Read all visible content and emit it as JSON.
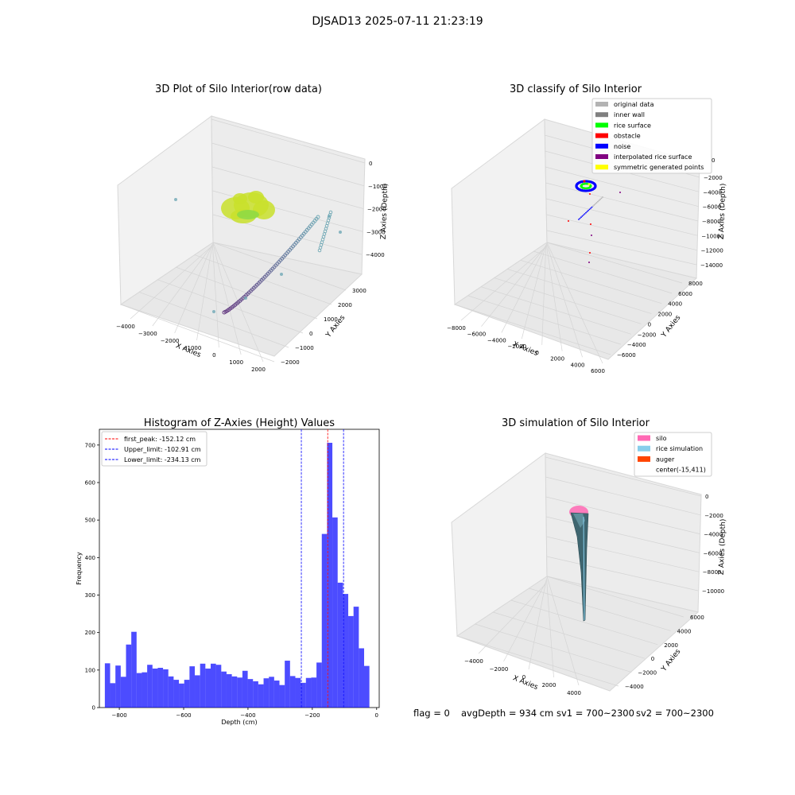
{
  "figure": {
    "suptitle": "DJSAD13 2025-07-11 21:23:19",
    "status_line": {
      "flag": "flag = 0",
      "avg_depth": "avgDepth = 934 cm",
      "sv1": "sv1 = 700~2300",
      "sv2": "sv2 = 700~2300"
    }
  },
  "chart_data": [
    {
      "id": "raw3d",
      "type": "scatter",
      "projection": "3d",
      "title": "3D Plot of Silo Interior(row data)",
      "xlabel": "X Axies",
      "ylabel": "Y Axies",
      "zlabel": "Z Axies (Depth)",
      "x_ticks": [
        "−4000",
        "−3000",
        "−2000",
        "−1000",
        "0",
        "1000",
        "2000"
      ],
      "y_ticks": [
        "−2000",
        "−1000",
        "0",
        "1000",
        "2000",
        "3000"
      ],
      "z_ticks": [
        "0",
        "−1000",
        "−2000",
        "−3000",
        "−4000"
      ],
      "colors": {
        "surface": "#c9e02c",
        "arc": "#5b2d7a",
        "wall": "#6fa8b5"
      },
      "legend": null
    },
    {
      "id": "classify3d",
      "type": "scatter",
      "projection": "3d",
      "title": "3D classify of Silo Interior",
      "xlabel": "X Axies",
      "ylabel": "Y Axies",
      "zlabel": "Z Axies (Depth)",
      "x_ticks": [
        "−8000",
        "−6000",
        "−4000",
        "−2000",
        "0",
        "2000",
        "4000",
        "6000"
      ],
      "y_ticks": [
        "−6000",
        "−4000",
        "−2000",
        "0",
        "2000",
        "4000",
        "6000",
        "8000"
      ],
      "z_ticks": [
        "−2000",
        "−4000",
        "−6000",
        "−8000",
        "−10000",
        "−12000",
        "−14000"
      ],
      "z_top_tick": "0",
      "legend": {
        "placement": "top-right",
        "entries": [
          {
            "label": "original data",
            "color": "#b3b3b3"
          },
          {
            "label": "inner wall",
            "color": "#808080"
          },
          {
            "label": "rice surface",
            "color": "#00ff00"
          },
          {
            "label": "obstacle",
            "color": "#ff0000"
          },
          {
            "label": "noise",
            "color": "#0000ff"
          },
          {
            "label": "interpolated rice surface",
            "color": "#800080"
          },
          {
            "label": "symmetric generated points",
            "color": "#ffff00"
          }
        ]
      }
    },
    {
      "id": "histogram",
      "type": "bar",
      "title": "Histogram of Z-Axies (Height) Values",
      "xlabel": "Depth (cm)",
      "ylabel": "Frequency",
      "xlim": [
        -862,
        8
      ],
      "ylim": [
        0,
        742
      ],
      "x_ticks": [
        -800,
        -600,
        -400,
        -200,
        0
      ],
      "x_tick_labels": [
        "−800",
        "−600",
        "−400",
        "−200",
        "0"
      ],
      "y_ticks": [
        0,
        100,
        200,
        300,
        400,
        500,
        600,
        700
      ],
      "y_tick_labels": [
        "0",
        "100",
        "200",
        "300",
        "400",
        "500",
        "600",
        "700"
      ],
      "bar_color": "#0000ff",
      "bin_start": -845,
      "bin_width": 16.45,
      "values": [
        118,
        65,
        112,
        82,
        168,
        202,
        92,
        94,
        114,
        104,
        106,
        102,
        83,
        74,
        64,
        74,
        110,
        86,
        117,
        104,
        117,
        114,
        96,
        89,
        83,
        80,
        98,
        76,
        70,
        62,
        78,
        82,
        72,
        60,
        125,
        84,
        79,
        66,
        79,
        80,
        120,
        463,
        706,
        507,
        333,
        303,
        244,
        269,
        158,
        111
      ],
      "vlines": [
        {
          "label": "first_peak: -152.12 cm",
          "x": -152.12,
          "color": "#ff0000"
        },
        {
          "label": "Upper_limit: -102.91 cm",
          "x": -102.91,
          "color": "#0000ff"
        },
        {
          "label": "Lower_limit: -234.13 cm",
          "x": -234.13,
          "color": "#0000ff"
        }
      ],
      "legend": {
        "placement": "top-left"
      }
    },
    {
      "id": "sim3d",
      "type": "area",
      "projection": "3d",
      "title": "3D simulation of Silo Interior",
      "xlabel": "X Axies",
      "ylabel": "Y Axies",
      "zlabel": "Z Axies (Depth)",
      "x_ticks": [
        "−4000",
        "−2000",
        "0",
        "2000",
        "4000"
      ],
      "y_ticks": [
        "−4000",
        "−2000",
        "0",
        "2000",
        "4000",
        "6000"
      ],
      "z_ticks": [
        "0",
        "−2000",
        "−4000",
        "−6000",
        "−8000",
        "−10000"
      ],
      "legend": {
        "placement": "top-right",
        "entries": [
          {
            "label": "silo",
            "color": "#ff69b4"
          },
          {
            "label": "rice simulation",
            "color": "#87ceeb"
          },
          {
            "label": "auger",
            "color": "#ff4500"
          },
          {
            "label": "center(-15,411)",
            "color": ""
          }
        ]
      }
    }
  ]
}
